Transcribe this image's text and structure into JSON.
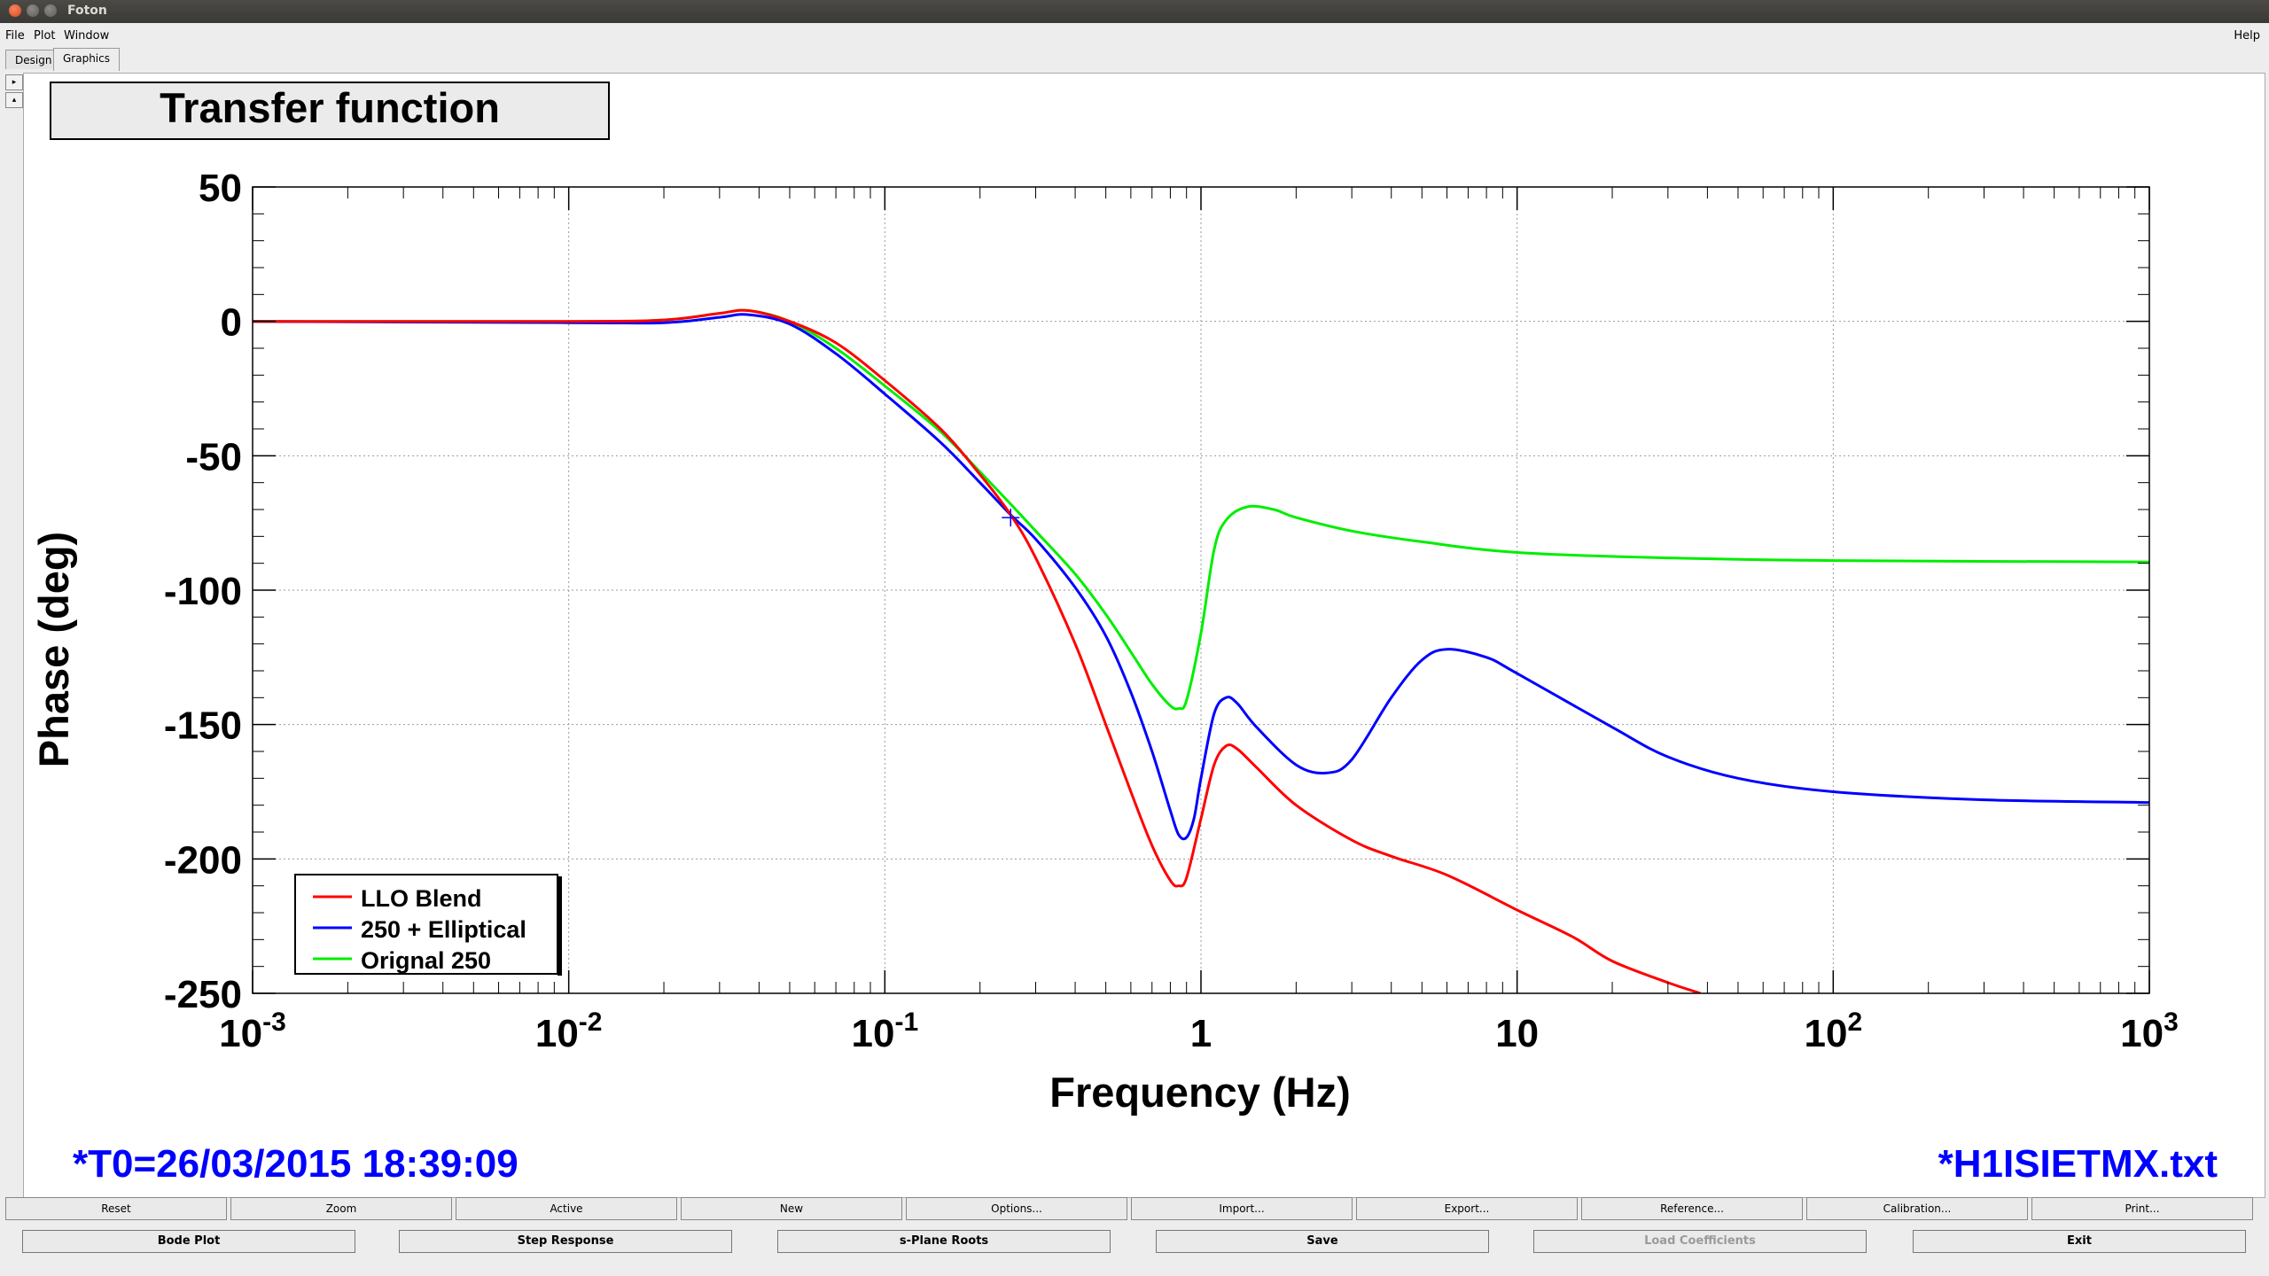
{
  "window": {
    "title": "Foton"
  },
  "menu": {
    "file": "File",
    "plot": "Plot",
    "window": "Window",
    "help": "Help"
  },
  "tabs": {
    "design": "Design",
    "graphics": "Graphics"
  },
  "plot_title": "Transfer function",
  "footer": {
    "left": "*T0=26/03/2015 18:39:09",
    "right": "*H1ISIETMX.txt"
  },
  "colors": {
    "llo_blend": "#ff0000",
    "elliptical": "#0000ff",
    "orignal": "#00ee00",
    "annotation": "#0000ff"
  },
  "toolbar_top": [
    "Reset",
    "Zoom",
    "Active",
    "New",
    "Options...",
    "Import...",
    "Export...",
    "Reference...",
    "Calibration...",
    "Print..."
  ],
  "toolbar_bottom": [
    {
      "label": "Bode Plot",
      "enabled": true
    },
    {
      "label": "Step Response",
      "enabled": true
    },
    {
      "label": "s-Plane Roots",
      "enabled": true
    },
    {
      "label": "Save",
      "enabled": true
    },
    {
      "label": "Load Coefficients",
      "enabled": false
    },
    {
      "label": "Exit",
      "enabled": true
    }
  ],
  "chart_data": {
    "type": "line",
    "xlabel": "Frequency (Hz)",
    "ylabel": "Phase (deg)",
    "xscale": "log",
    "xlim": [
      0.001,
      1000
    ],
    "ylim": [
      -250,
      50
    ],
    "xticks": [
      {
        "value": 0.001,
        "base": "10",
        "exp": "-3"
      },
      {
        "value": 0.01,
        "base": "10",
        "exp": "-2"
      },
      {
        "value": 0.1,
        "base": "10",
        "exp": "-1"
      },
      {
        "value": 1,
        "base": "1",
        "exp": ""
      },
      {
        "value": 10,
        "base": "10",
        "exp": ""
      },
      {
        "value": 100,
        "base": "10",
        "exp": "2"
      },
      {
        "value": 1000,
        "base": "10",
        "exp": "3"
      }
    ],
    "yticks": [
      50,
      0,
      -50,
      -100,
      -150,
      -200,
      -250
    ],
    "grid": true,
    "legend_position": "bottom-left",
    "series": [
      {
        "name": "LLO Blend",
        "color": "#ff0000",
        "points": [
          [
            0.001,
            0
          ],
          [
            0.01,
            0
          ],
          [
            0.02,
            0.5
          ],
          [
            0.03,
            3
          ],
          [
            0.037,
            4
          ],
          [
            0.05,
            0
          ],
          [
            0.07,
            -8
          ],
          [
            0.1,
            -22
          ],
          [
            0.15,
            -40
          ],
          [
            0.2,
            -57
          ],
          [
            0.25,
            -72
          ],
          [
            0.3,
            -88
          ],
          [
            0.4,
            -120
          ],
          [
            0.5,
            -150
          ],
          [
            0.6,
            -175
          ],
          [
            0.7,
            -195
          ],
          [
            0.8,
            -208
          ],
          [
            0.85,
            -210
          ],
          [
            0.9,
            -207
          ],
          [
            1.0,
            -185
          ],
          [
            1.1,
            -165
          ],
          [
            1.2,
            -158
          ],
          [
            1.3,
            -159
          ],
          [
            1.5,
            -166
          ],
          [
            2,
            -180
          ],
          [
            3,
            -193
          ],
          [
            4,
            -199
          ],
          [
            6,
            -206
          ],
          [
            10,
            -219
          ],
          [
            15,
            -229
          ],
          [
            20,
            -238
          ],
          [
            30,
            -246
          ],
          [
            38,
            -250
          ]
        ]
      },
      {
        "name": "250 + Elliptical",
        "color": "#0000ff",
        "points": [
          [
            0.001,
            0
          ],
          [
            0.01,
            -0.5
          ],
          [
            0.02,
            -0.5
          ],
          [
            0.03,
            1.5
          ],
          [
            0.037,
            2.5
          ],
          [
            0.05,
            -1
          ],
          [
            0.07,
            -12
          ],
          [
            0.1,
            -27
          ],
          [
            0.15,
            -45
          ],
          [
            0.2,
            -60
          ],
          [
            0.25,
            -72
          ],
          [
            0.3,
            -81
          ],
          [
            0.4,
            -99
          ],
          [
            0.5,
            -117
          ],
          [
            0.6,
            -138
          ],
          [
            0.7,
            -160
          ],
          [
            0.8,
            -182
          ],
          [
            0.85,
            -191
          ],
          [
            0.9,
            -192
          ],
          [
            0.95,
            -185
          ],
          [
            1.0,
            -170
          ],
          [
            1.1,
            -146
          ],
          [
            1.2,
            -140
          ],
          [
            1.3,
            -142
          ],
          [
            1.5,
            -151
          ],
          [
            2,
            -165
          ],
          [
            2.5,
            -168
          ],
          [
            3,
            -163
          ],
          [
            4,
            -140
          ],
          [
            5,
            -126
          ],
          [
            6,
            -122
          ],
          [
            8,
            -125
          ],
          [
            10,
            -131
          ],
          [
            20,
            -151
          ],
          [
            30,
            -162
          ],
          [
            50,
            -170
          ],
          [
            100,
            -175
          ],
          [
            300,
            -178
          ],
          [
            1000,
            -179
          ]
        ]
      },
      {
        "name": "Orignal 250",
        "color": "#00ee00",
        "points": [
          [
            0.001,
            0
          ],
          [
            0.01,
            0
          ],
          [
            0.02,
            0.5
          ],
          [
            0.03,
            3
          ],
          [
            0.037,
            4
          ],
          [
            0.05,
            0
          ],
          [
            0.07,
            -10
          ],
          [
            0.1,
            -24
          ],
          [
            0.15,
            -41
          ],
          [
            0.2,
            -56
          ],
          [
            0.25,
            -68
          ],
          [
            0.3,
            -78
          ],
          [
            0.4,
            -94
          ],
          [
            0.5,
            -109
          ],
          [
            0.6,
            -123
          ],
          [
            0.7,
            -135
          ],
          [
            0.8,
            -143
          ],
          [
            0.85,
            -144
          ],
          [
            0.9,
            -141
          ],
          [
            1.0,
            -116
          ],
          [
            1.1,
            -85
          ],
          [
            1.2,
            -74
          ],
          [
            1.4,
            -69
          ],
          [
            1.7,
            -70
          ],
          [
            2,
            -73
          ],
          [
            3,
            -78
          ],
          [
            5,
            -82
          ],
          [
            10,
            -86
          ],
          [
            30,
            -88
          ],
          [
            100,
            -89
          ],
          [
            1000,
            -89.5
          ]
        ]
      }
    ]
  }
}
